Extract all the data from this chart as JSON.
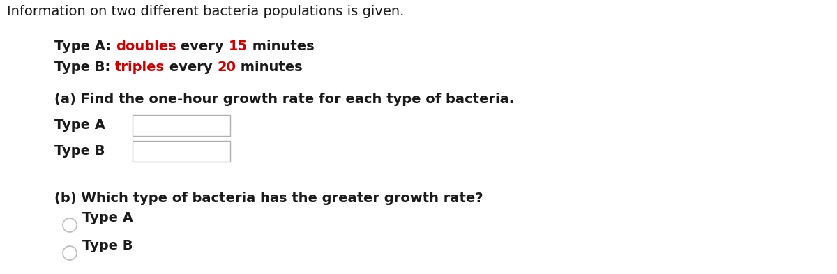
{
  "background_color": "#ffffff",
  "title_text": "Information on two different bacteria populations is given.",
  "title_fontsize": 14,
  "title_color": "#1a1a1a",
  "typeA_parts": [
    {
      "text": "Type A: ",
      "color": "#1a1a1a",
      "bold": true
    },
    {
      "text": "doubles",
      "color": "#cc0000",
      "bold": true
    },
    {
      "text": " every ",
      "color": "#1a1a1a",
      "bold": true
    },
    {
      "text": "15",
      "color": "#cc0000",
      "bold": true
    },
    {
      "text": " minutes",
      "color": "#1a1a1a",
      "bold": true
    }
  ],
  "typeB_parts": [
    {
      "text": "Type B: ",
      "color": "#1a1a1a",
      "bold": true
    },
    {
      "text": "triples",
      "color": "#cc0000",
      "bold": true
    },
    {
      "text": " every ",
      "color": "#1a1a1a",
      "bold": true
    },
    {
      "text": "20",
      "color": "#cc0000",
      "bold": true
    },
    {
      "text": " minutes",
      "color": "#1a1a1a",
      "bold": true
    }
  ],
  "part_a_text": "(a) Find the one-hour growth rate for each type of bacteria.",
  "part_a_fontsize": 14,
  "label_typeA_text": "Type A",
  "label_typeB_text": "Type B",
  "box_edge_color": "#b0b0b0",
  "box_face_color": "#ffffff",
  "part_b_text": "(b) Which type of bacteria has the greater growth rate?",
  "part_b_fontsize": 14,
  "radio_typeA_text": "Type A",
  "radio_typeB_text": "Type B",
  "radio_color": "#bbbbbb",
  "label_fontsize": 14,
  "text_color": "#1a1a1a"
}
